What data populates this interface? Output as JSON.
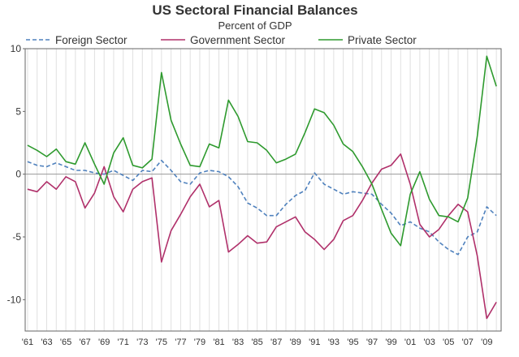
{
  "chart_data": {
    "type": "line",
    "title": "US Sectoral Financial Balances",
    "subtitle": "Percent of GDP",
    "xlabel": "",
    "ylabel": "",
    "x_tick_labels": [
      "'61",
      "'63",
      "'65",
      "'67",
      "'69",
      "'71",
      "'73",
      "'75",
      "'77",
      "'79",
      "'81",
      "'83",
      "'85",
      "'87",
      "'89",
      "'91",
      "'93",
      "'95",
      "'97",
      "'99",
      "'01",
      "'03",
      "'05",
      "'07",
      "'09"
    ],
    "x_range": [
      1960.75,
      2010.5
    ],
    "ylim": [
      -12.5,
      10
    ],
    "y_ticks": [
      10,
      5,
      0,
      -5,
      -10
    ],
    "grid": {
      "vertical": true,
      "horizontal": false,
      "zero_line": true
    },
    "legend_position": "top",
    "colors": {
      "foreign": "#4f81bd",
      "government": "#b0306a",
      "private": "#2e9a2e",
      "grid": "#e0e0e0",
      "zero_line": "#999999",
      "axis": "#666666"
    },
    "series": [
      {
        "name": "Foreign Sector",
        "style": "dashed",
        "points": [
          [
            1961,
            1.0
          ],
          [
            1962,
            0.7
          ],
          [
            1963,
            0.6
          ],
          [
            1964,
            0.9
          ],
          [
            1965,
            0.6
          ],
          [
            1966,
            0.3
          ],
          [
            1967,
            0.3
          ],
          [
            1968,
            0.1
          ],
          [
            1969,
            0.0
          ],
          [
            1970,
            0.3
          ],
          [
            1971,
            -0.1
          ],
          [
            1972,
            -0.5
          ],
          [
            1973,
            0.3
          ],
          [
            1974,
            0.2
          ],
          [
            1975,
            1.1
          ],
          [
            1976,
            0.3
          ],
          [
            1977,
            -0.6
          ],
          [
            1978,
            -0.8
          ],
          [
            1979,
            0.1
          ],
          [
            1980,
            0.3
          ],
          [
            1981,
            0.2
          ],
          [
            1982,
            -0.2
          ],
          [
            1983,
            -1.0
          ],
          [
            1984,
            -2.3
          ],
          [
            1985,
            -2.7
          ],
          [
            1986,
            -3.3
          ],
          [
            1987,
            -3.3
          ],
          [
            1988,
            -2.4
          ],
          [
            1989,
            -1.7
          ],
          [
            1990,
            -1.3
          ],
          [
            1991,
            0.1
          ],
          [
            1992,
            -0.8
          ],
          [
            1993,
            -1.2
          ],
          [
            1994,
            -1.6
          ],
          [
            1995,
            -1.4
          ],
          [
            1996,
            -1.5
          ],
          [
            1997,
            -1.6
          ],
          [
            1998,
            -2.4
          ],
          [
            1999,
            -3.1
          ],
          [
            2000,
            -4.1
          ],
          [
            2001,
            -3.8
          ],
          [
            2002,
            -4.3
          ],
          [
            2003,
            -4.6
          ],
          [
            2004,
            -5.4
          ],
          [
            2005,
            -6.0
          ],
          [
            2006,
            -6.4
          ],
          [
            2007,
            -5.0
          ],
          [
            2008,
            -4.6
          ],
          [
            2009,
            -2.6
          ],
          [
            2010,
            -3.3
          ]
        ]
      },
      {
        "name": "Government Sector",
        "style": "solid",
        "points": [
          [
            1961,
            -1.2
          ],
          [
            1962,
            -1.4
          ],
          [
            1963,
            -0.6
          ],
          [
            1964,
            -1.2
          ],
          [
            1965,
            -0.2
          ],
          [
            1966,
            -0.6
          ],
          [
            1967,
            -2.7
          ],
          [
            1968,
            -1.5
          ],
          [
            1969,
            0.6
          ],
          [
            1970,
            -1.8
          ],
          [
            1971,
            -3.0
          ],
          [
            1972,
            -1.2
          ],
          [
            1973,
            -0.6
          ],
          [
            1974,
            -0.3
          ],
          [
            1975,
            -7.0
          ],
          [
            1976,
            -4.5
          ],
          [
            1977,
            -3.2
          ],
          [
            1978,
            -1.8
          ],
          [
            1979,
            -0.8
          ],
          [
            1980,
            -2.6
          ],
          [
            1981,
            -2.1
          ],
          [
            1982,
            -6.2
          ],
          [
            1983,
            -5.6
          ],
          [
            1984,
            -4.9
          ],
          [
            1985,
            -5.5
          ],
          [
            1986,
            -5.4
          ],
          [
            1987,
            -4.2
          ],
          [
            1988,
            -3.8
          ],
          [
            1989,
            -3.4
          ],
          [
            1990,
            -4.6
          ],
          [
            1991,
            -5.2
          ],
          [
            1992,
            -6.0
          ],
          [
            1993,
            -5.2
          ],
          [
            1994,
            -3.7
          ],
          [
            1995,
            -3.3
          ],
          [
            1996,
            -2.1
          ],
          [
            1997,
            -0.7
          ],
          [
            1998,
            0.4
          ],
          [
            1999,
            0.7
          ],
          [
            2000,
            1.6
          ],
          [
            2001,
            -0.8
          ],
          [
            2002,
            -4.0
          ],
          [
            2003,
            -5.0
          ],
          [
            2004,
            -4.4
          ],
          [
            2005,
            -3.3
          ],
          [
            2006,
            -2.4
          ],
          [
            2007,
            -3.0
          ],
          [
            2008,
            -6.5
          ],
          [
            2009,
            -11.5
          ],
          [
            2010,
            -10.2
          ]
        ]
      },
      {
        "name": "Private Sector",
        "style": "solid",
        "points": [
          [
            1961,
            2.3
          ],
          [
            1962,
            1.9
          ],
          [
            1963,
            1.4
          ],
          [
            1964,
            2.0
          ],
          [
            1965,
            1.0
          ],
          [
            1966,
            0.8
          ],
          [
            1967,
            2.5
          ],
          [
            1968,
            0.8
          ],
          [
            1969,
            -0.8
          ],
          [
            1970,
            1.7
          ],
          [
            1971,
            2.9
          ],
          [
            1972,
            0.7
          ],
          [
            1973,
            0.5
          ],
          [
            1974,
            1.2
          ],
          [
            1975,
            8.1
          ],
          [
            1976,
            4.3
          ],
          [
            1977,
            2.4
          ],
          [
            1978,
            0.7
          ],
          [
            1979,
            0.6
          ],
          [
            1980,
            2.4
          ],
          [
            1981,
            2.1
          ],
          [
            1982,
            5.9
          ],
          [
            1983,
            4.6
          ],
          [
            1984,
            2.6
          ],
          [
            1985,
            2.5
          ],
          [
            1986,
            1.9
          ],
          [
            1987,
            0.9
          ],
          [
            1988,
            1.2
          ],
          [
            1989,
            1.6
          ],
          [
            1990,
            3.3
          ],
          [
            1991,
            5.2
          ],
          [
            1992,
            4.9
          ],
          [
            1993,
            3.9
          ],
          [
            1994,
            2.4
          ],
          [
            1995,
            1.8
          ],
          [
            1996,
            0.6
          ],
          [
            1997,
            -0.8
          ],
          [
            1998,
            -2.8
          ],
          [
            1999,
            -4.7
          ],
          [
            2000,
            -5.7
          ],
          [
            2001,
            -1.6
          ],
          [
            2002,
            0.2
          ],
          [
            2003,
            -2.0
          ],
          [
            2004,
            -3.3
          ],
          [
            2005,
            -3.4
          ],
          [
            2006,
            -3.8
          ],
          [
            2007,
            -1.9
          ],
          [
            2008,
            3.0
          ],
          [
            2009,
            9.4
          ],
          [
            2010,
            7.0
          ]
        ]
      }
    ]
  }
}
